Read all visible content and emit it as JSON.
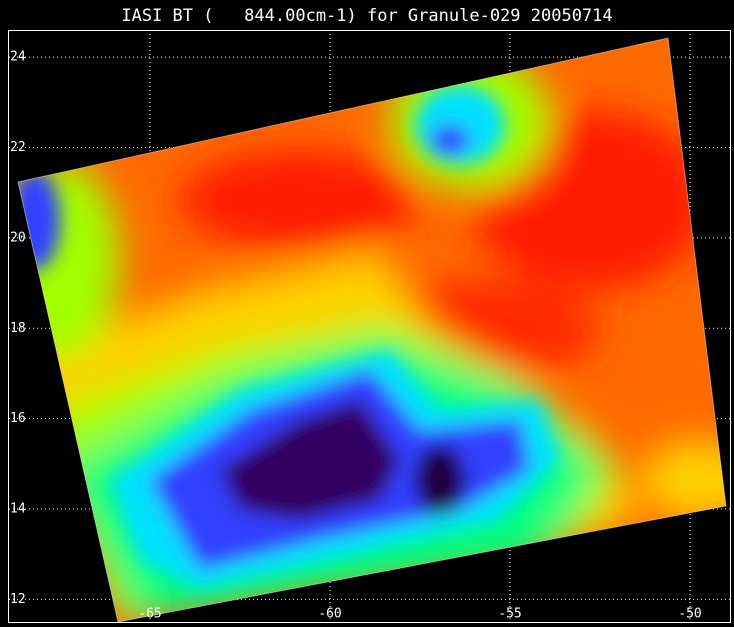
{
  "map_data": {
    "title": "IASI BT (   844.00cm-1) for Granule-029 20050714",
    "xlim": [
      -69,
      -49
    ],
    "ylim": [
      11.5,
      24.6
    ],
    "xticks": [
      -65,
      -60,
      -55,
      -50
    ],
    "yticks": [
      12,
      14,
      16,
      18,
      20,
      22,
      24
    ],
    "grid": true
  }
}
